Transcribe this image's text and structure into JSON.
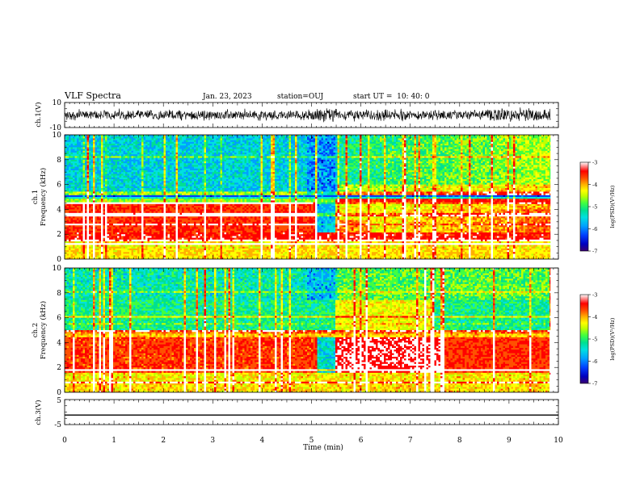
{
  "header": {
    "title": "VLF Spectra",
    "date": "Jan. 23, 2023",
    "station": "station=OUJ",
    "start": "start UT =  10: 40: 0"
  },
  "chart_data": {
    "type": "heatmap",
    "x": {
      "label": "Time (min)",
      "range": [
        0,
        10
      ],
      "ticks": [
        "0",
        "1",
        "2",
        "3",
        "4",
        "5",
        "6",
        "7",
        "8",
        "9",
        "10"
      ]
    },
    "panels": [
      {
        "id": "ch1-waveform",
        "type": "line",
        "ylabel": "ch.1(V)",
        "ylim": [
          -10,
          10
        ],
        "ticks": [
          "10",
          "-10"
        ],
        "data_end_min": 9.84
      },
      {
        "id": "ch1-spectrogram",
        "type": "heatmap",
        "ylabel": "ch.1\nFrequency (kHz)",
        "ylim": [
          0,
          10
        ],
        "ticks": [
          "0",
          "2",
          "4",
          "6",
          "8",
          "10"
        ],
        "colorbar": {
          "label": "log(PSD)(V²/Hz)",
          "range": [
            -7,
            -3
          ],
          "ticks": [
            "-3",
            "-4",
            "-5",
            "-6",
            "-7"
          ]
        }
      },
      {
        "id": "ch2-spectrogram",
        "type": "heatmap",
        "ylabel": "ch.2\nFrequency (kHz)",
        "ylim": [
          0,
          10
        ],
        "ticks": [
          "0",
          "2",
          "4",
          "6",
          "8",
          "10"
        ],
        "colorbar": {
          "label": "log(PSD)(V²/Hz)",
          "range": [
            -7,
            -3
          ],
          "ticks": [
            "-3",
            "-4",
            "-5",
            "-6",
            "-7"
          ]
        }
      },
      {
        "id": "ch3-waveform",
        "type": "line",
        "ylabel": "ch.3(V)",
        "ylim": [
          -5,
          5
        ],
        "ticks": [
          "5",
          "-5"
        ],
        "constant_value": -1.2
      }
    ],
    "colormap": [
      "#3a0070",
      "#0000c0",
      "#0040ff",
      "#00a0ff",
      "#00e0e0",
      "#00e090",
      "#40ff40",
      "#c0ff00",
      "#ffff00",
      "#ffb000",
      "#ff5000",
      "#ff0000",
      "#ffffff"
    ]
  }
}
